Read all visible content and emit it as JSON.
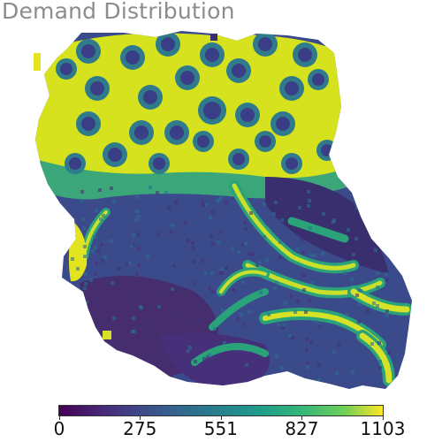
{
  "title": "Demand Distribution",
  "colorbar": {
    "colormap": "viridis",
    "min": 0,
    "max": 1103,
    "ticks": [
      "0",
      "275",
      "551",
      "827",
      "1103"
    ],
    "colors": [
      "#440154",
      "#3b528b",
      "#21918c",
      "#5ec962",
      "#fde725"
    ]
  },
  "map": {
    "type": "heatmap",
    "description_levels": {
      "north_region": "high",
      "center_region": "low",
      "south_east_corridors": "high",
      "south_west": "low"
    }
  }
}
